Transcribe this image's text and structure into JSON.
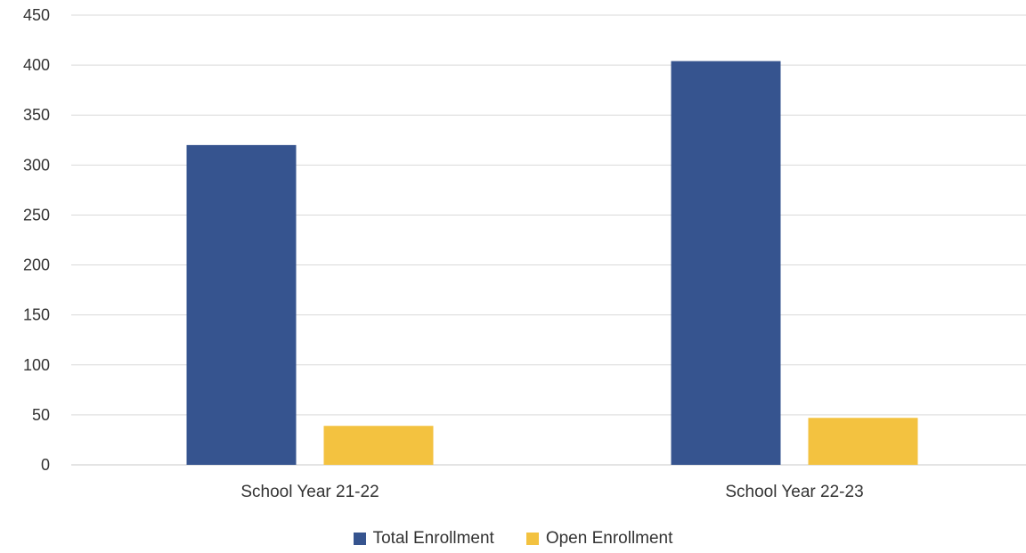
{
  "chart_data": {
    "type": "bar",
    "categories": [
      "School Year 21-22",
      "School Year 22-23"
    ],
    "series": [
      {
        "name": "Total Enrollment",
        "color": "#36548f",
        "values": [
          320,
          404
        ]
      },
      {
        "name": "Open Enrollment",
        "color": "#f3c240",
        "values": [
          39,
          47
        ]
      }
    ],
    "ylim": [
      0,
      450
    ],
    "yticks": [
      0,
      50,
      100,
      150,
      200,
      250,
      300,
      350,
      400,
      450
    ],
    "grid": true,
    "legend": "bottom-center",
    "title": "",
    "xlabel": "",
    "ylabel": ""
  }
}
